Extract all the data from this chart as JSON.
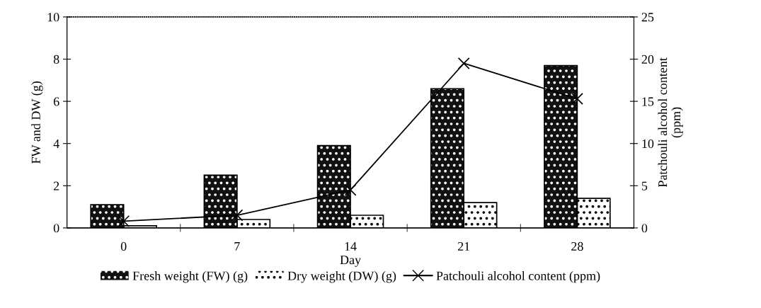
{
  "chart_data": {
    "type": "bar",
    "xlabel": "Day",
    "ylabel": "FW and DW (g)",
    "y2label": "Patchouli alcohol content\n(ppm)",
    "categories": [
      "0",
      "7",
      "14",
      "21",
      "28"
    ],
    "series": [
      {
        "name": "Fresh weight (FW) (g)",
        "color": "#111111",
        "values": [
          1.1,
          2.5,
          3.9,
          6.6,
          7.7
        ]
      },
      {
        "name": "Dry weight (DW) (g)",
        "color": "#ffffff",
        "values": [
          0.1,
          0.4,
          0.6,
          1.2,
          1.4
        ]
      },
      {
        "name": "Patchouli alcohol content (ppm)",
        "type": "line",
        "axis": "y2",
        "color": "#000000",
        "marker": "cross",
        "values": [
          0.8,
          1.5,
          4.5,
          19.5,
          15.3
        ]
      }
    ],
    "ylim": [
      0,
      10
    ],
    "yticks": [
      0,
      2,
      4,
      6,
      8,
      10
    ],
    "y2lim": [
      0,
      25
    ],
    "y2ticks": [
      0,
      5,
      10,
      15,
      20,
      25
    ],
    "legend": "bottom",
    "grid": false
  }
}
